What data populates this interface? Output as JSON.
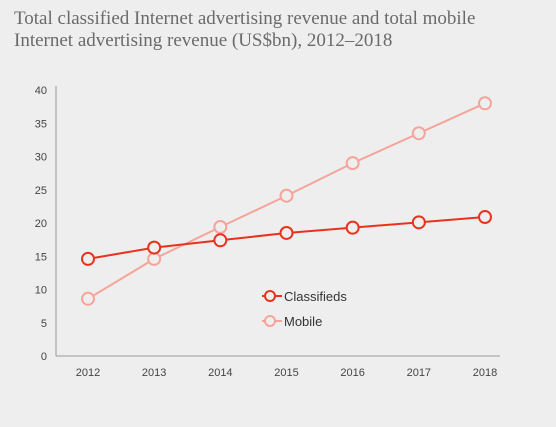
{
  "title_lines": [
    "Total classified Internet advertising revenue and total mobile",
    "Internet advertising revenue (US$bn), 2012–2018"
  ],
  "chart_data": {
    "type": "line",
    "title": "Total classified Internet advertising revenue and total mobile Internet advertising revenue (US$bn), 2012–2018",
    "x": [
      "2012",
      "2013",
      "2014",
      "2015",
      "2016",
      "2017",
      "2018"
    ],
    "ylim": [
      0,
      40
    ],
    "yticks": [
      0,
      5,
      10,
      15,
      20,
      25,
      30,
      35,
      40
    ],
    "grid": false,
    "legend_position": "bottom-center",
    "series": [
      {
        "name": "Classifieds",
        "color": "#e8321e",
        "values": [
          14.6,
          16.3,
          17.4,
          18.5,
          19.3,
          20.1,
          20.9
        ]
      },
      {
        "name": "Mobile",
        "color": "#f6a49a",
        "values": [
          8.6,
          14.6,
          19.4,
          24.1,
          29.0,
          33.5,
          38.0
        ]
      }
    ]
  }
}
